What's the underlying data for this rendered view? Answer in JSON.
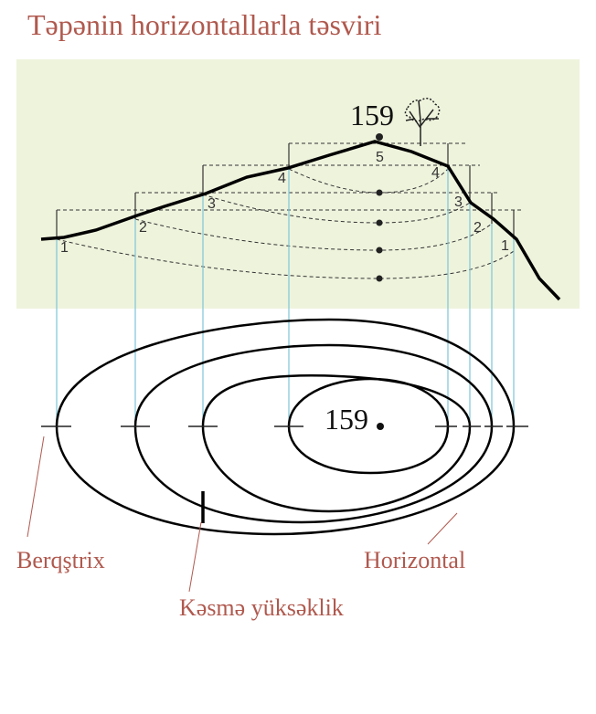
{
  "header": {
    "title": "Təpənin horizontallarla təsviri"
  },
  "profile": {
    "peak_label": "159",
    "levels": [
      "1",
      "2",
      "3",
      "4",
      "5",
      "4",
      "3",
      "2",
      "1"
    ]
  },
  "plan": {
    "peak_label": "159"
  },
  "labels": {
    "berqstrix": "Berqştrix",
    "kesme": "Kəsmə yüksəklik",
    "horizontal": "Horizontal"
  }
}
